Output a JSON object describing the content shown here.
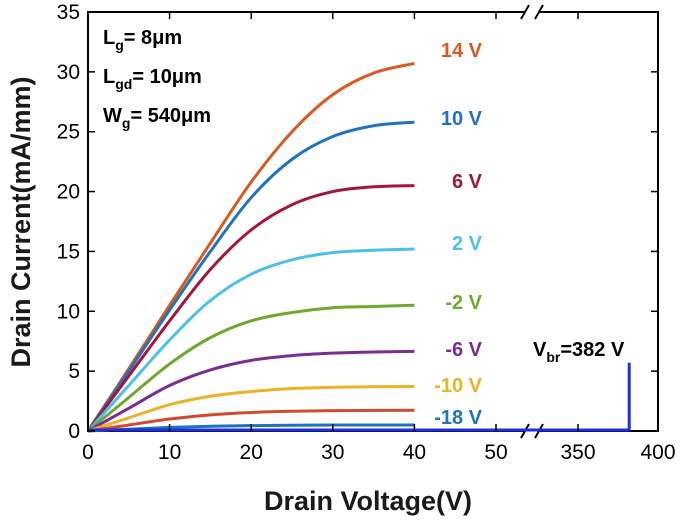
{
  "chart_data": {
    "type": "line",
    "title": "",
    "xlabel": "Drain Voltage(V)",
    "ylabel": "Drain Current(mA/mm)",
    "ylim": [
      0,
      35
    ],
    "y_ticks": [
      "0",
      "5",
      "10",
      "15",
      "20",
      "25",
      "30",
      "35"
    ],
    "x_segments": [
      {
        "range": [
          0,
          50
        ],
        "ticks": [
          "0",
          "10",
          "20",
          "30",
          "40",
          "50"
        ]
      },
      {
        "range": [
          320,
          400
        ],
        "ticks": [
          "350",
          "400"
        ]
      }
    ],
    "axis_break": true,
    "grid": false,
    "annotations": [
      {
        "id": "lg",
        "base": "L",
        "sub": "g",
        "rest": "= 8μm"
      },
      {
        "id": "lgd",
        "base": "L",
        "sub": "gd",
        "rest": "= 10μm"
      },
      {
        "id": "wg",
        "base": "W",
        "sub": "g",
        "rest": "= 540μm"
      },
      {
        "id": "vbr",
        "base": "V",
        "sub": "br",
        "rest": "=382 V"
      }
    ],
    "breakdown": {
      "x": 382,
      "y_top": 5.7,
      "color": "#1f2ee0"
    },
    "series": [
      {
        "name": "14 V",
        "color": "#d95a1f",
        "x": [
          0,
          5,
          10,
          15,
          20,
          25,
          30,
          35,
          40
        ],
        "y": [
          0,
          5.2,
          10.5,
          15.7,
          20.8,
          25.0,
          28.1,
          29.9,
          30.7
        ]
      },
      {
        "name": "10 V",
        "color": "#1f72c0",
        "x": [
          0,
          5,
          10,
          15,
          20,
          25,
          30,
          35,
          40
        ],
        "y": [
          0,
          5.0,
          10.1,
          15.0,
          19.5,
          22.7,
          24.6,
          25.5,
          25.8
        ]
      },
      {
        "name": "6 V",
        "color": "#a3163c",
        "x": [
          0,
          5,
          10,
          15,
          20,
          25,
          30,
          35,
          40
        ],
        "y": [
          0,
          4.6,
          9.2,
          13.5,
          16.8,
          18.9,
          20.0,
          20.4,
          20.5
        ]
      },
      {
        "name": "2 V",
        "color": "#4cc0ec",
        "x": [
          0,
          5,
          10,
          15,
          20,
          25,
          30,
          35,
          40
        ],
        "y": [
          0,
          3.8,
          7.6,
          10.9,
          13.1,
          14.3,
          14.9,
          15.1,
          15.2
        ]
      },
      {
        "name": "-2 V",
        "color": "#6ea82d",
        "x": [
          0,
          5,
          10,
          15,
          20,
          25,
          30,
          35,
          40
        ],
        "y": [
          0,
          2.8,
          5.6,
          7.8,
          9.2,
          9.9,
          10.3,
          10.4,
          10.5
        ]
      },
      {
        "name": "-6 V",
        "color": "#7a2d91",
        "x": [
          0,
          5,
          10,
          15,
          20,
          25,
          30,
          35,
          40
        ],
        "y": [
          0,
          1.9,
          3.8,
          5.1,
          5.9,
          6.3,
          6.5,
          6.6,
          6.65
        ]
      },
      {
        "name": "-10 V",
        "color": "#eab326",
        "x": [
          0,
          5,
          10,
          15,
          20,
          25,
          30,
          35,
          40
        ],
        "y": [
          0,
          1.1,
          2.2,
          2.9,
          3.3,
          3.55,
          3.65,
          3.7,
          3.72
        ]
      },
      {
        "name": "",
        "color": "#d24a2d",
        "x": [
          0,
          5,
          10,
          15,
          20,
          25,
          30,
          35,
          40
        ],
        "y": [
          0,
          0.5,
          1.0,
          1.35,
          1.55,
          1.65,
          1.7,
          1.72,
          1.73
        ]
      },
      {
        "name": "-18 V",
        "color": "#1f72c0",
        "x": [
          0,
          5,
          10,
          15,
          20,
          25,
          30,
          35,
          40
        ],
        "y": [
          0,
          0.15,
          0.3,
          0.4,
          0.45,
          0.48,
          0.5,
          0.5,
          0.5
        ]
      }
    ]
  }
}
